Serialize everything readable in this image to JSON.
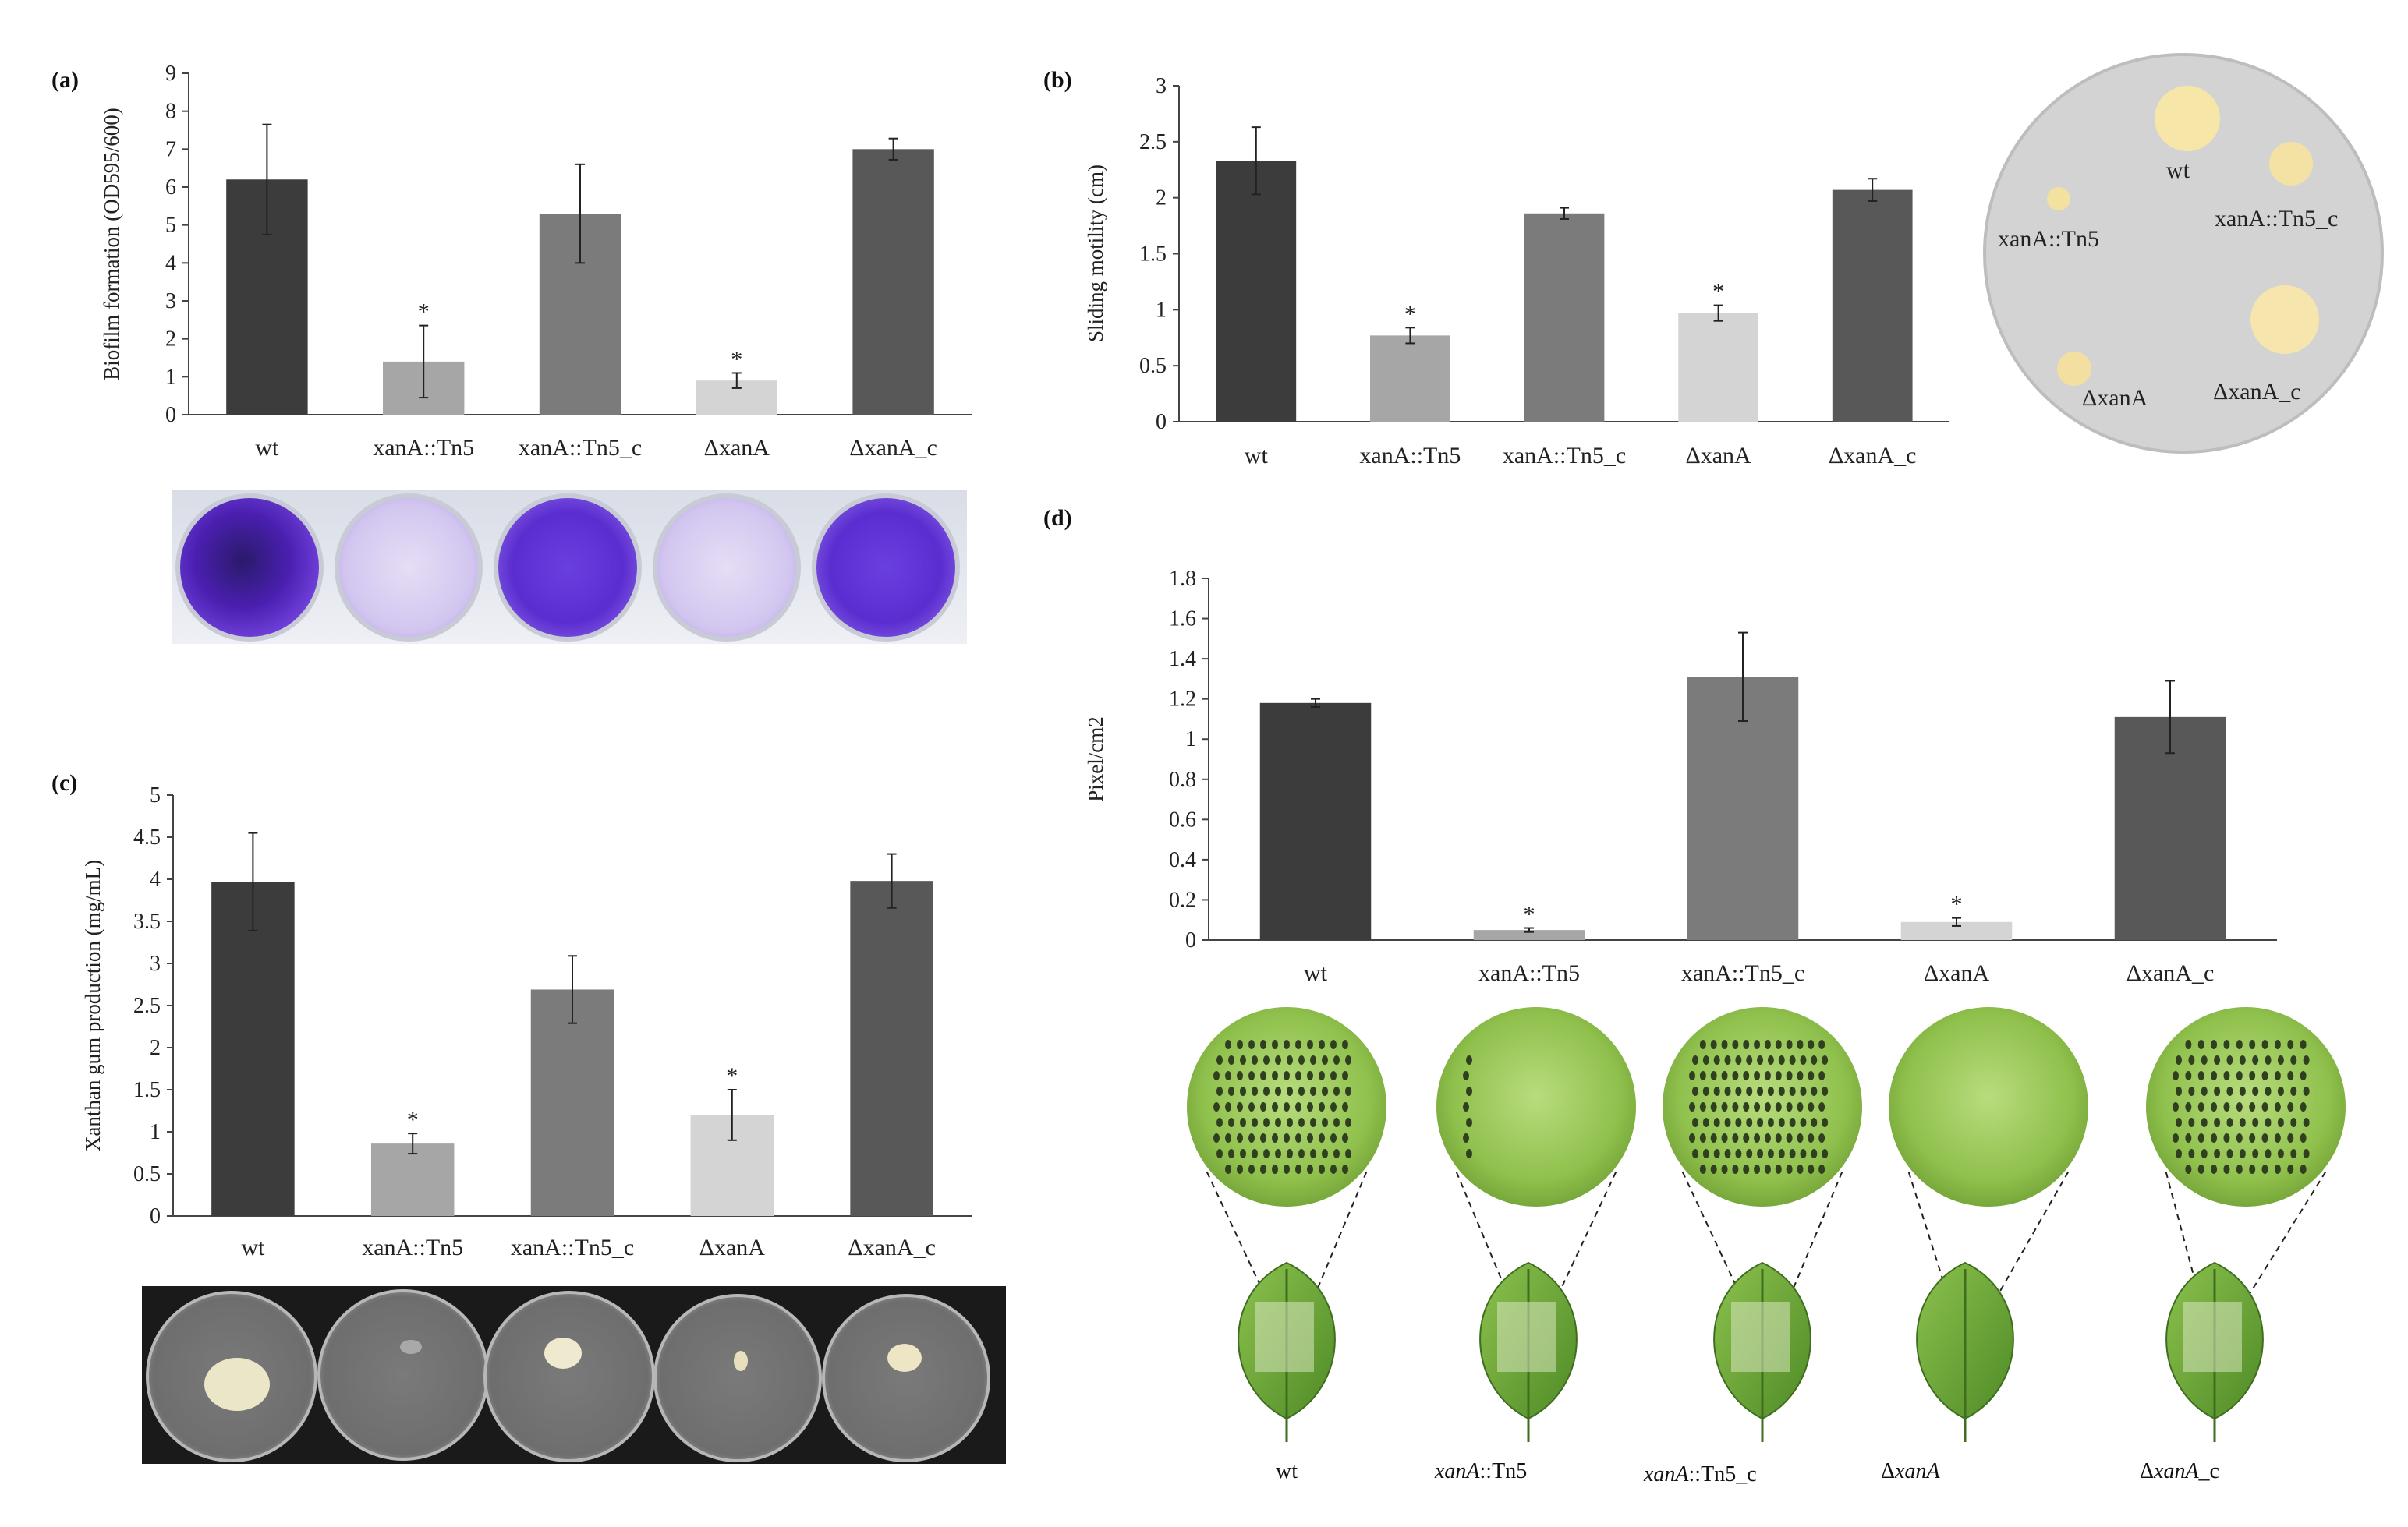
{
  "panels": {
    "a": "(a)",
    "b": "(b)",
    "c": "(c)",
    "d": "(d)"
  },
  "colors": {
    "wt": "#3c3c3c",
    "xanA_Tn5": "#a6a6a6",
    "xanA_Tn5_c": "#7b7b7b",
    "delta_xanA": "#d4d4d4",
    "delta_xanA_c": "#585858",
    "crystal_violet": "#5b2bc9",
    "leaf": "#6fae3a"
  },
  "chart_data": [
    {
      "id": "a",
      "type": "bar",
      "categories": [
        "wt",
        "xanA::Tn5",
        "xanA::Tn5_c",
        "ΔxanA",
        "ΔxanA_c"
      ],
      "values": [
        6.2,
        1.4,
        5.3,
        0.9,
        7.0
      ],
      "errors": [
        1.45,
        0.95,
        1.3,
        0.2,
        0.28
      ],
      "significance": [
        "",
        "*",
        "",
        "*",
        ""
      ],
      "ylabel": "Biofilm formation (OD595/600)",
      "ylim": [
        0,
        9
      ],
      "yticks": [
        "0",
        "1",
        "2",
        "3",
        "4",
        "5",
        "6",
        "7",
        "8",
        "9"
      ],
      "tickvalues": [
        0,
        1,
        2,
        3,
        4,
        5,
        6,
        7,
        8,
        9
      ]
    },
    {
      "id": "b",
      "type": "bar",
      "categories": [
        "wt",
        "xanA::Tn5",
        "xanA::Tn5_c",
        "ΔxanA",
        "ΔxanA_c"
      ],
      "values": [
        2.33,
        0.77,
        1.86,
        0.97,
        2.07
      ],
      "errors": [
        0.3,
        0.07,
        0.05,
        0.07,
        0.1
      ],
      "significance": [
        "",
        "*",
        "",
        "*",
        ""
      ],
      "ylabel": "Sliding motility (cm)",
      "ylim": [
        0,
        3
      ],
      "yticks": [
        "0",
        "0.5",
        "1",
        "1.5",
        "2",
        "2.5",
        "3"
      ],
      "tickvalues": [
        0,
        0.5,
        1,
        1.5,
        2,
        2.5,
        3
      ]
    },
    {
      "id": "c",
      "type": "bar",
      "categories": [
        "wt",
        "xanA::Tn5",
        "xanA::Tn5_c",
        "ΔxanA",
        "ΔxanA_c"
      ],
      "values": [
        3.97,
        0.86,
        2.69,
        1.2,
        3.98
      ],
      "errors": [
        0.58,
        0.12,
        0.4,
        0.3,
        0.32
      ],
      "significance": [
        "",
        "*",
        "",
        "*",
        ""
      ],
      "ylabel": "Xanthan gum production (mg/mL)",
      "ylim": [
        0,
        5
      ],
      "yticks": [
        "0",
        "0.5",
        "1",
        "1.5",
        "2",
        "2.5",
        "3",
        "3.5",
        "4",
        "4.5",
        "5"
      ],
      "tickvalues": [
        0,
        0.5,
        1,
        1.5,
        2,
        2.5,
        3,
        3.5,
        4,
        4.5,
        5
      ]
    },
    {
      "id": "d",
      "type": "bar",
      "categories": [
        "wt",
        "xanA::Tn5",
        "xanA::Tn5_c",
        "ΔxanA",
        "ΔxanA_c"
      ],
      "values": [
        1.18,
        0.05,
        1.31,
        0.09,
        1.11
      ],
      "errors": [
        0.02,
        0.01,
        0.22,
        0.02,
        0.18
      ],
      "significance": [
        "",
        "*",
        "",
        "*",
        ""
      ],
      "ylabel": "Pixel/cm2",
      "ylim": [
        0,
        1.8
      ],
      "yticks": [
        "0",
        "0.2",
        "0.4",
        "0.6",
        "0.8",
        "1",
        "1.2",
        "1.4",
        "1.6",
        "1.8"
      ],
      "tickvalues": [
        0,
        0.2,
        0.4,
        0.6,
        0.8,
        1,
        1.2,
        1.4,
        1.6,
        1.8
      ]
    }
  ],
  "plate_b": {
    "labels": [
      "wt",
      "xanA::Tn5",
      "xanA::Tn5_c",
      "ΔxanA",
      "ΔxanA_c"
    ]
  },
  "leaf_labels": [
    {
      "italic": "",
      "plain": "wt"
    },
    {
      "italic": "xanA",
      "plain": "::Tn5"
    },
    {
      "italic": "xanA",
      "plain": "::Tn5_c"
    },
    {
      "italic": "xanA",
      "prefix": "Δ",
      "plain": ""
    },
    {
      "italic": "xanA",
      "prefix": "Δ",
      "plain": "_c"
    }
  ]
}
